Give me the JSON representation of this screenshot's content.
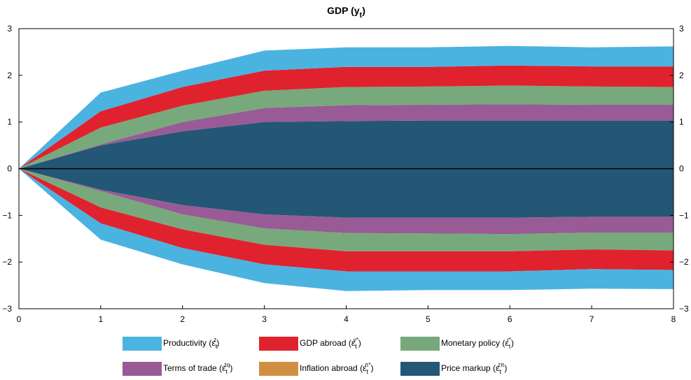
{
  "chart_data": {
    "type": "area",
    "title": [
      "GDP (y",
      "t",
      ")"
    ],
    "x": [
      0,
      1,
      2,
      3,
      4,
      5,
      6,
      7,
      8
    ],
    "xlim": [
      0,
      8
    ],
    "xticks": [
      0,
      1,
      2,
      3,
      4,
      5,
      6,
      7,
      8
    ],
    "ylim": [
      -3,
      3
    ],
    "yticks": [
      {
        "value": -3,
        "label": "−3"
      },
      {
        "value": -2,
        "label": "−2"
      },
      {
        "value": -1,
        "label": "−1"
      },
      0,
      1,
      2,
      3
    ],
    "series": [
      {
        "label": [
          "Productivity (ε",
          "t",
          "z",
          ")"
        ],
        "color": "#4bb3e0",
        "values": [
          0,
          0.4,
          0.35,
          0.43,
          0.42,
          0.42,
          0.42,
          0.41,
          0.43
        ],
        "negative_values": [
          0,
          -0.35,
          -0.35,
          -0.4,
          -0.42,
          -0.4,
          -0.4,
          -0.42,
          -0.41
        ]
      },
      {
        "label": [
          "GDP abroad (ε",
          "t",
          "y*",
          ")"
        ],
        "color": "#e0222f",
        "values": [
          0,
          0.35,
          0.4,
          0.43,
          0.43,
          0.42,
          0.43,
          0.43,
          0.44
        ],
        "negative_values": [
          0,
          -0.34,
          -0.4,
          -0.42,
          -0.43,
          -0.43,
          -0.43,
          -0.42,
          -0.42
        ]
      },
      {
        "label": [
          "Monetary policy (ε",
          "t",
          "r*",
          ")"
        ],
        "color": "#78a97c",
        "values": [
          0,
          0.36,
          0.35,
          0.37,
          0.39,
          0.39,
          0.4,
          0.39,
          0.38
        ],
        "negative_values": [
          0,
          -0.35,
          -0.32,
          -0.35,
          -0.39,
          -0.38,
          -0.37,
          -0.36,
          -0.38
        ]
      },
      {
        "label": [
          "Terms of trade (ε",
          "t",
          "zq",
          ")"
        ],
        "color": "#985b95",
        "values": [
          0,
          0.02,
          0.2,
          0.3,
          0.34,
          0.34,
          0.35,
          0.34,
          0.34
        ],
        "negative_values": [
          0,
          -0.03,
          -0.2,
          -0.3,
          -0.33,
          -0.34,
          -0.35,
          -0.34,
          -0.34
        ]
      },
      {
        "label": [
          "Inflation abroad (ε",
          "t",
          "π*",
          ")"
        ],
        "color": "#d08f40",
        "values": [
          0,
          0,
          0,
          0,
          0,
          0,
          0,
          0,
          0
        ],
        "negative_values": [
          0,
          0,
          0,
          0,
          0,
          0,
          0,
          0,
          0
        ]
      },
      {
        "label": [
          "Price markup (ε",
          "t",
          "zπ",
          ")"
        ],
        "color": "#235775",
        "values": [
          0,
          0.5,
          0.8,
          1.0,
          1.02,
          1.03,
          1.03,
          1.03,
          1.03
        ],
        "negative_values": [
          0,
          -0.45,
          -0.78,
          -0.98,
          -1.05,
          -1.05,
          -1.05,
          -1.03,
          -1.03
        ]
      }
    ]
  }
}
